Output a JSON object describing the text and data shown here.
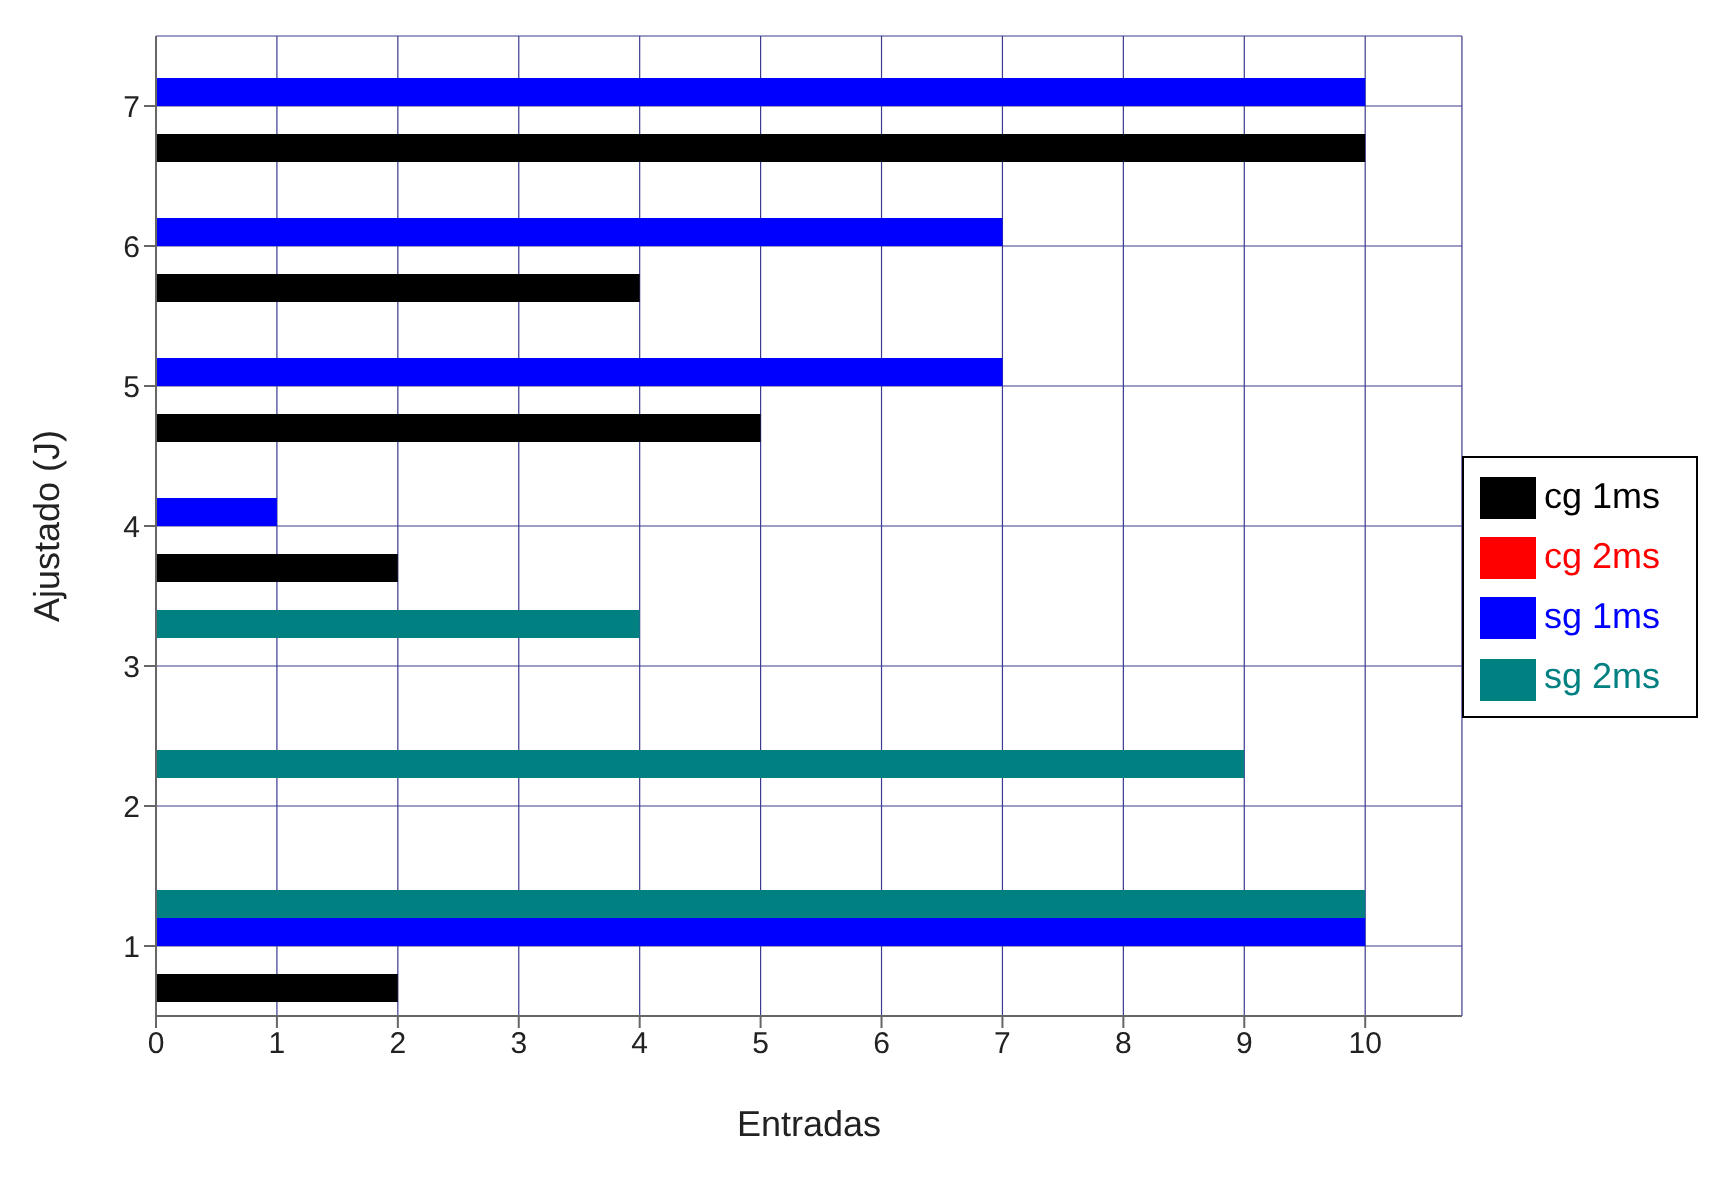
{
  "chart_data": {
    "type": "bar",
    "orientation": "horizontal",
    "xlabel": "Entradas",
    "ylabel": "Ajustado (J)",
    "categories": [
      "7",
      "6",
      "5",
      "4",
      "3",
      "2",
      "1"
    ],
    "series": [
      {
        "name": "sg 2ms",
        "color": "#008080",
        "values": [
          null,
          null,
          null,
          null,
          4,
          9,
          10
        ]
      },
      {
        "name": "sg 1ms",
        "color": "#0000ff",
        "values": [
          10,
          7,
          7,
          1,
          null,
          null,
          10
        ]
      },
      {
        "name": "cg 2ms",
        "color": "#ff0000",
        "values": [
          null,
          null,
          null,
          null,
          null,
          null,
          null
        ]
      },
      {
        "name": "cg 1ms",
        "color": "#000000",
        "values": [
          10,
          4,
          5,
          2,
          null,
          null,
          2
        ]
      }
    ],
    "xlim": [
      0,
      10.8
    ],
    "xticks": [
      0,
      1,
      2,
      3,
      4,
      5,
      6,
      7,
      8,
      9,
      10
    ],
    "grid": true,
    "legend": "right"
  }
}
